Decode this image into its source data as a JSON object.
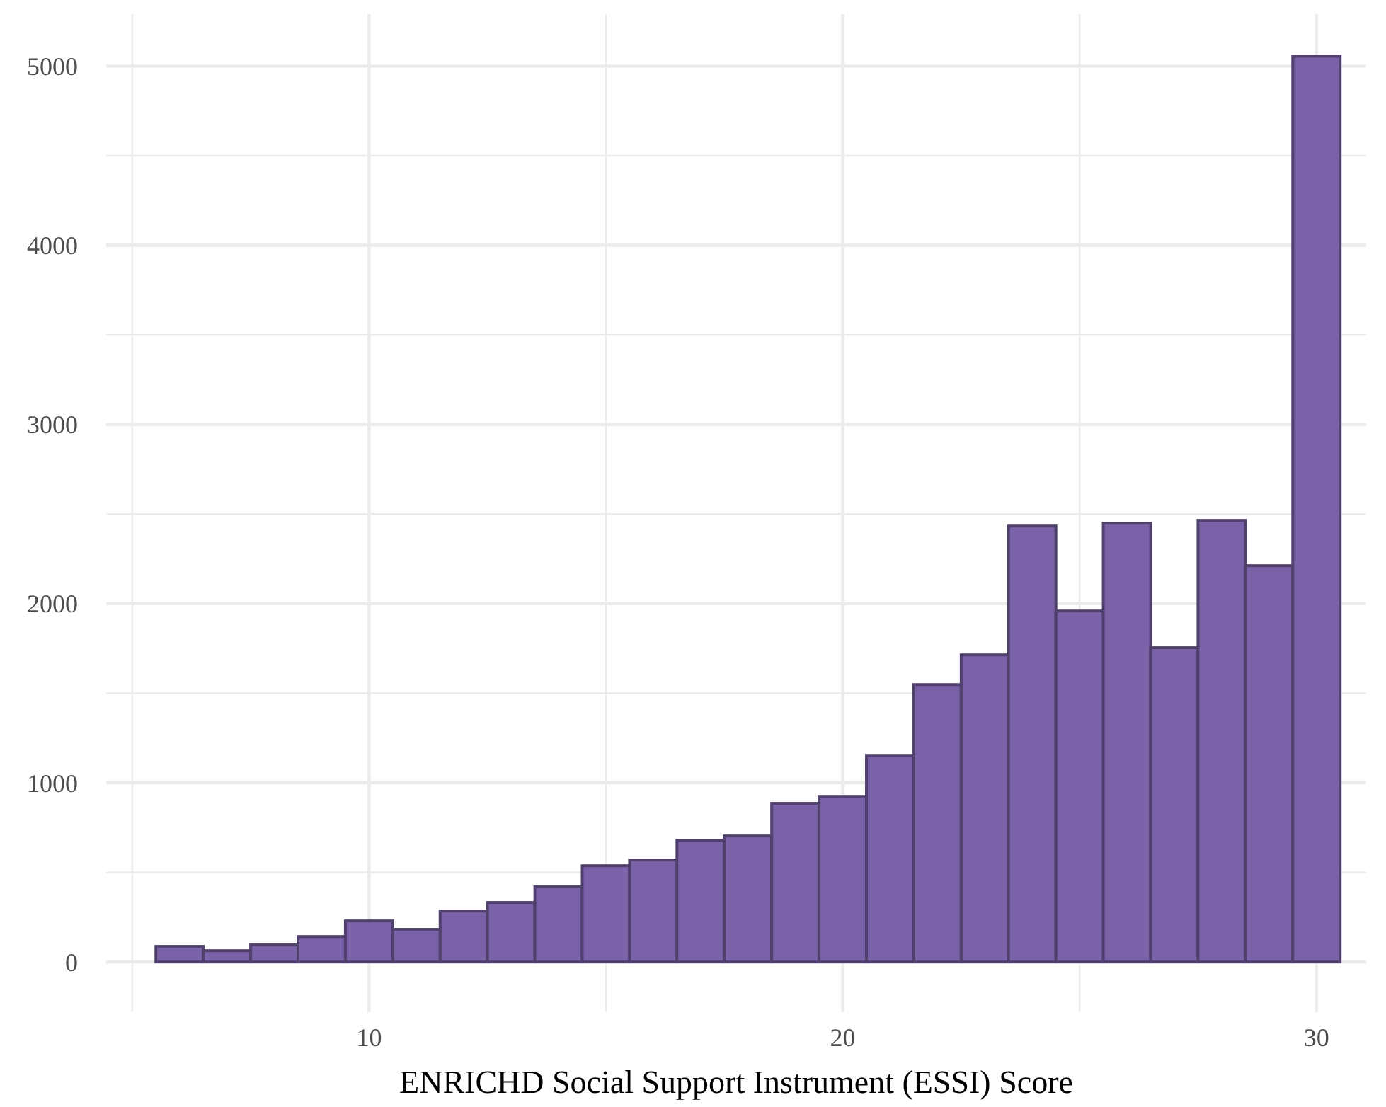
{
  "chart_data": {
    "type": "histogram",
    "xlabel": "ENRICHD Social Support Instrument (ESSI) Score",
    "color": "#7a62a8",
    "bins": [
      5.5,
      6.5,
      7.5,
      8.5,
      9.5,
      10.5,
      11.5,
      12.5,
      13.5,
      14.5,
      15.5,
      16.5,
      17.5,
      18.5,
      19.5,
      20.5,
      21.5,
      22.5,
      23.5,
      24.5,
      25.5,
      26.5,
      27.5,
      28.5,
      29.5,
      30.5
    ],
    "values": [
      87,
      63,
      95,
      142,
      229,
      182,
      284,
      332,
      419,
      537,
      569,
      679,
      703,
      885,
      924,
      1153,
      1548,
      1714,
      2433,
      1959,
      2449,
      1754,
      2465,
      2212,
      5055
    ],
    "xlim": [
      4.45,
      31.05
    ],
    "xticks": [
      {
        "value": 5,
        "label": null
      },
      10,
      {
        "value": 15,
        "label": null
      },
      20,
      {
        "value": 25,
        "label": null
      },
      30
    ],
    "ylim": [
      -280,
      5290
    ],
    "yticks": [
      0,
      {
        "value": 500,
        "label": null
      },
      1000,
      {
        "value": 1500,
        "label": null
      },
      2000,
      {
        "value": 2500,
        "label": null
      },
      3000,
      {
        "value": 3500,
        "label": null
      },
      4000,
      {
        "value": 4500,
        "label": null
      },
      5000
    ],
    "grid": true
  }
}
